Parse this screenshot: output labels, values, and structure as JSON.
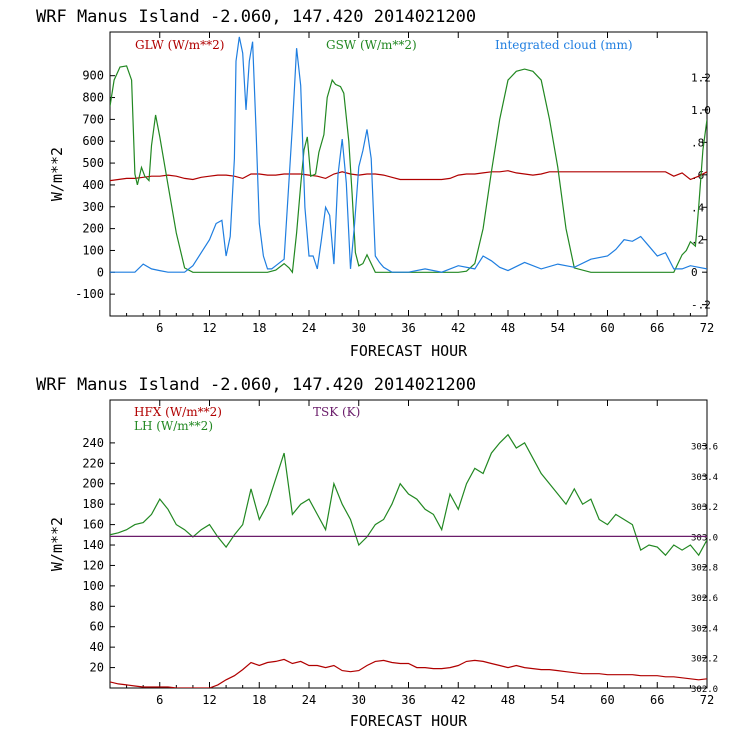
{
  "panels": [
    {
      "title": "WRF   Manus Island  -2.060, 147.420  2014021200",
      "ylabel": "W/m**2",
      "xlabel": "FORECAST HOUR",
      "x_ticks": [
        "6",
        "12",
        "18",
        "24",
        "30",
        "36",
        "42",
        "48",
        "54",
        "60",
        "66",
        "72"
      ],
      "y_ticks": [
        "-100",
        "0",
        "100",
        "200",
        "300",
        "400",
        "500",
        "600",
        "700",
        "800",
        "900"
      ],
      "right_ticks": [
        "-.2",
        "0",
        ".2",
        ".4",
        ".6",
        ".8",
        "1.0",
        "1.2"
      ],
      "legend": [
        {
          "label": "GLW (W/m**2)",
          "color": "#b00000"
        },
        {
          "label": "GSW (W/m**2)",
          "color": "#228822"
        },
        {
          "label": "Integrated cloud (mm)",
          "color": "#1f7ee0"
        }
      ]
    },
    {
      "title": "WRF   Manus Island  -2.060, 147.420  2014021200",
      "ylabel": "W/m**2",
      "xlabel": "FORECAST HOUR",
      "x_ticks": [
        "6",
        "12",
        "18",
        "24",
        "30",
        "36",
        "42",
        "48",
        "54",
        "60",
        "66",
        "72"
      ],
      "y_ticks": [
        "20",
        "40",
        "60",
        "80",
        "100",
        "120",
        "140",
        "160",
        "180",
        "200",
        "220",
        "240"
      ],
      "right_ticks": [
        "302.0",
        "302.2",
        "302.4",
        "302.6",
        "302.8",
        "303.0",
        "303.2",
        "303.4",
        "303.6"
      ],
      "legend": [
        {
          "label": "HFX (W/m**2)",
          "color": "#b00000"
        },
        {
          "label": "LH  (W/m**2)",
          "color": "#228822"
        },
        {
          "label": "TSK (K)",
          "color": "#6a1c6a"
        }
      ]
    }
  ],
  "chart_data": [
    {
      "type": "line",
      "title": "WRF   Manus Island  -2.060, 147.420  2014021200",
      "xlabel": "FORECAST HOUR",
      "ylabel": "W/m**2",
      "xlim": [
        0,
        72
      ],
      "ylim": [
        -200,
        1100
      ],
      "y2lim": [
        -0.27,
        1.48
      ],
      "grid": false,
      "legend_position": "top",
      "series": [
        {
          "name": "GLW (W/m**2)",
          "axis": "left",
          "color": "#b00000",
          "x": [
            0,
            1,
            2,
            3,
            4,
            5,
            6,
            7,
            8,
            9,
            10,
            11,
            12,
            13,
            14,
            15,
            16,
            17,
            18,
            19,
            20,
            21,
            22,
            23,
            24,
            25,
            26,
            27,
            28,
            29,
            30,
            31,
            32,
            33,
            34,
            35,
            36,
            37,
            38,
            39,
            40,
            41,
            42,
            43,
            44,
            45,
            46,
            47,
            48,
            49,
            50,
            51,
            52,
            53,
            54,
            55,
            56,
            57,
            58,
            59,
            60,
            61,
            62,
            63,
            64,
            65,
            66,
            67,
            68,
            69,
            70,
            71,
            72
          ],
          "y": [
            420,
            425,
            430,
            430,
            435,
            440,
            440,
            445,
            440,
            430,
            425,
            435,
            440,
            445,
            445,
            440,
            430,
            450,
            450,
            445,
            445,
            450,
            450,
            450,
            445,
            440,
            430,
            450,
            460,
            450,
            445,
            450,
            450,
            445,
            435,
            425,
            425,
            425,
            425,
            425,
            425,
            430,
            445,
            450,
            450,
            455,
            460,
            460,
            465,
            455,
            450,
            445,
            450,
            460,
            460,
            460,
            460,
            460,
            460,
            460,
            460,
            460,
            460,
            460,
            460,
            460,
            460,
            460,
            440,
            455,
            425,
            440,
            460
          ]
        },
        {
          "name": "GSW (W/m**2)",
          "axis": "left",
          "color": "#228822",
          "x": [
            0,
            0.5,
            1.2,
            2.0,
            2.6,
            3.0,
            3.3,
            3.8,
            4.2,
            4.7,
            5.0,
            5.5,
            6.0,
            7.0,
            8.0,
            9.0,
            10.0,
            12.0,
            14.0,
            16.0,
            18.0,
            19.0,
            20.0,
            21.0,
            21.6,
            22.0,
            22.5,
            23.0,
            23.4,
            23.8,
            24.2,
            24.8,
            25.2,
            25.8,
            26.2,
            26.8,
            27.2,
            27.8,
            28.2,
            28.8,
            29.2,
            29.6,
            30.0,
            30.5,
            31.0,
            32.0,
            34.0,
            36.0,
            40.0,
            42.0,
            43.0,
            44.0,
            45.0,
            46.0,
            47.0,
            48.0,
            49.0,
            50.0,
            51.0,
            52.0,
            53.0,
            54.0,
            55.0,
            56.0,
            58.0,
            66.0,
            68.0,
            69.0,
            69.5,
            70.0,
            70.6,
            71.0,
            71.5,
            72.0
          ],
          "y": [
            760,
            880,
            940,
            945,
            880,
            450,
            400,
            480,
            440,
            420,
            580,
            720,
            620,
            400,
            180,
            20,
            0,
            0,
            0,
            0,
            0,
            0,
            10,
            40,
            20,
            0,
            180,
            400,
            560,
            620,
            440,
            450,
            550,
            630,
            800,
            880,
            860,
            850,
            820,
            600,
            360,
            90,
            30,
            40,
            80,
            0,
            0,
            0,
            0,
            0,
            5,
            40,
            200,
            460,
            700,
            880,
            920,
            930,
            920,
            880,
            700,
            480,
            200,
            20,
            0,
            0,
            0,
            80,
            100,
            140,
            120,
            300,
            560,
            700
          ]
        },
        {
          "name": "Integrated cloud (mm)",
          "axis": "right",
          "color": "#1f7ee0",
          "x": [
            0,
            2,
            3,
            4,
            5,
            6,
            7,
            8,
            9,
            10,
            11,
            12,
            12.8,
            13.5,
            14.0,
            14.5,
            15.0,
            15.2,
            15.6,
            16.0,
            16.4,
            16.8,
            17.2,
            17.6,
            18.0,
            18.5,
            19.0,
            19.5,
            20.0,
            21.0,
            22.0,
            22.5,
            23.0,
            23.5,
            24.0,
            24.5,
            25.0,
            25.5,
            26.0,
            26.5,
            27.0,
            27.5,
            28.0,
            28.5,
            29.0,
            29.5,
            30.0,
            30.5,
            31.0,
            31.5,
            32.0,
            32.5,
            33.0,
            34.0,
            36.0,
            38.0,
            40.0,
            42.0,
            44.0,
            45.0,
            46.0,
            47.0,
            48.0,
            50.0,
            52.0,
            54.0,
            56.0,
            58.0,
            60.0,
            61.0,
            62.0,
            63.0,
            64.0,
            65.0,
            66.0,
            67.0,
            68.0,
            69.0,
            70.0,
            71.0,
            72.0
          ],
          "y": [
            0,
            0,
            0,
            0.05,
            0.02,
            0.01,
            0,
            0,
            0,
            0.04,
            0.12,
            0.2,
            0.3,
            0.32,
            0.1,
            0.22,
            0.7,
            1.3,
            1.45,
            1.35,
            1.0,
            1.3,
            1.42,
            0.9,
            0.3,
            0.1,
            0.02,
            0.02,
            0.04,
            0.08,
            0.9,
            1.38,
            1.15,
            0.4,
            0.1,
            0.1,
            0.02,
            0.2,
            0.4,
            0.35,
            0.05,
            0.6,
            0.82,
            0.55,
            0.02,
            0.3,
            0.65,
            0.75,
            0.88,
            0.7,
            0.1,
            0.06,
            0.03,
            0,
            0,
            0.02,
            0,
            0.04,
            0.02,
            0.1,
            0.07,
            0.03,
            0.01,
            0.06,
            0.02,
            0.05,
            0.03,
            0.08,
            0.1,
            0.14,
            0.2,
            0.19,
            0.22,
            0.16,
            0.1,
            0.12,
            0.02,
            0.02,
            0.04,
            0.03,
            0.02
          ]
        }
      ]
    },
    {
      "type": "line",
      "title": "WRF   Manus Island  -2.060, 147.420  2014021200",
      "xlabel": "FORECAST HOUR",
      "ylabel": "W/m**2",
      "xlim": [
        0,
        72
      ],
      "ylim": [
        0,
        282
      ],
      "y2lim": [
        302.0,
        303.9
      ],
      "grid": false,
      "legend_position": "top-left",
      "series": [
        {
          "name": "HFX (W/m**2)",
          "axis": "left",
          "color": "#b00000",
          "x": [
            0,
            1,
            2,
            3,
            4,
            5,
            6,
            7,
            8,
            9,
            10,
            11,
            12,
            13,
            14,
            15,
            16,
            17,
            18,
            19,
            20,
            21,
            22,
            23,
            24,
            25,
            26,
            27,
            28,
            29,
            30,
            31,
            32,
            33,
            34,
            35,
            36,
            37,
            38,
            39,
            40,
            41,
            42,
            43,
            44,
            45,
            46,
            47,
            48,
            49,
            50,
            51,
            52,
            53,
            54,
            55,
            56,
            57,
            58,
            59,
            60,
            61,
            62,
            63,
            64,
            65,
            66,
            67,
            68,
            69,
            70,
            71,
            72
          ],
          "y": [
            6,
            4,
            3,
            2,
            1,
            1,
            1,
            1,
            0,
            0,
            0,
            0,
            0,
            3,
            8,
            12,
            18,
            25,
            22,
            25,
            26,
            28,
            24,
            26,
            22,
            22,
            20,
            22,
            17,
            16,
            17,
            22,
            26,
            27,
            25,
            24,
            24,
            20,
            20,
            19,
            19,
            20,
            22,
            26,
            27,
            26,
            24,
            22,
            20,
            22,
            20,
            19,
            18,
            18,
            17,
            16,
            15,
            14,
            14,
            14,
            13,
            13,
            13,
            13,
            12,
            12,
            12,
            11,
            11,
            10,
            9,
            8,
            9
          ]
        },
        {
          "name": "LH  (W/m**2)",
          "axis": "left",
          "color": "#228822",
          "x": [
            0,
            1,
            2,
            3,
            4,
            5,
            6,
            7,
            8,
            9,
            10,
            11,
            12,
            13,
            14,
            15,
            16,
            17,
            18,
            19,
            20,
            21,
            22,
            23,
            24,
            25,
            26,
            27,
            28,
            29,
            30,
            31,
            32,
            33,
            34,
            35,
            36,
            37,
            38,
            39,
            40,
            41,
            42,
            43,
            44,
            45,
            46,
            47,
            48,
            49,
            50,
            51,
            52,
            53,
            54,
            55,
            56,
            57,
            58,
            59,
            60,
            61,
            62,
            63,
            64,
            65,
            66,
            67,
            68,
            69,
            70,
            71,
            72
          ],
          "y": [
            150,
            152,
            155,
            160,
            162,
            170,
            185,
            175,
            160,
            155,
            148,
            155,
            160,
            148,
            138,
            150,
            160,
            195,
            165,
            180,
            205,
            230,
            170,
            180,
            185,
            170,
            155,
            200,
            180,
            165,
            140,
            148,
            160,
            165,
            180,
            200,
            190,
            185,
            175,
            170,
            155,
            190,
            175,
            200,
            215,
            210,
            230,
            240,
            248,
            235,
            240,
            225,
            210,
            200,
            190,
            180,
            195,
            180,
            185,
            165,
            160,
            170,
            165,
            160,
            135,
            140,
            138,
            130,
            140,
            135,
            140,
            130,
            145
          ]
        },
        {
          "name": "TSK (K)",
          "axis": "right",
          "color": "#6a1c6a",
          "x": [
            0,
            72
          ],
          "y": [
            303.0,
            303.0
          ]
        }
      ]
    }
  ]
}
